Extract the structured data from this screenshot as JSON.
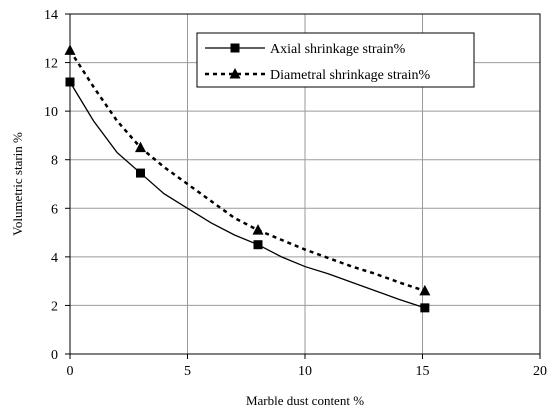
{
  "chart_data": {
    "type": "line",
    "title": "",
    "xlabel": "Marble dust content %",
    "ylabel": "Volumetric starin %",
    "xlim": [
      0,
      20
    ],
    "ylim": [
      0,
      14
    ],
    "xticks": [
      0,
      5,
      10,
      15,
      20
    ],
    "yticks": [
      0,
      2,
      4,
      6,
      8,
      10,
      12,
      14
    ],
    "grid": true,
    "legend_position": "top-right",
    "series": [
      {
        "name": "Axial shrinkage strain%",
        "marker": "square",
        "line_style": "solid",
        "color": "#000000",
        "points": [
          {
            "x": 0,
            "y": 11.2
          },
          {
            "x": 3,
            "y": 7.45
          },
          {
            "x": 8,
            "y": 4.5
          },
          {
            "x": 15.1,
            "y": 1.9
          }
        ],
        "curve": [
          {
            "x": 0,
            "y": 11.2
          },
          {
            "x": 1,
            "y": 9.6
          },
          {
            "x": 2,
            "y": 8.3
          },
          {
            "x": 3,
            "y": 7.45
          },
          {
            "x": 4,
            "y": 6.6
          },
          {
            "x": 5,
            "y": 6.0
          },
          {
            "x": 6,
            "y": 5.4
          },
          {
            "x": 7,
            "y": 4.9
          },
          {
            "x": 8,
            "y": 4.5
          },
          {
            "x": 9,
            "y": 4.0
          },
          {
            "x": 10,
            "y": 3.6
          },
          {
            "x": 11,
            "y": 3.3
          },
          {
            "x": 12,
            "y": 2.95
          },
          {
            "x": 13,
            "y": 2.6
          },
          {
            "x": 14,
            "y": 2.25
          },
          {
            "x": 15.1,
            "y": 1.9
          }
        ]
      },
      {
        "name": "Diametral shrinkage strain%",
        "marker": "triangle",
        "line_style": "dashed",
        "color": "#000000",
        "points": [
          {
            "x": 0,
            "y": 12.5
          },
          {
            "x": 3,
            "y": 8.5
          },
          {
            "x": 8,
            "y": 5.1
          },
          {
            "x": 15.1,
            "y": 2.6
          }
        ],
        "curve": [
          {
            "x": 0,
            "y": 12.5
          },
          {
            "x": 1,
            "y": 11.0
          },
          {
            "x": 2,
            "y": 9.6
          },
          {
            "x": 3,
            "y": 8.5
          },
          {
            "x": 4,
            "y": 7.7
          },
          {
            "x": 5,
            "y": 7.0
          },
          {
            "x": 6,
            "y": 6.3
          },
          {
            "x": 7,
            "y": 5.6
          },
          {
            "x": 8,
            "y": 5.1
          },
          {
            "x": 9,
            "y": 4.7
          },
          {
            "x": 10,
            "y": 4.3
          },
          {
            "x": 11,
            "y": 3.95
          },
          {
            "x": 12,
            "y": 3.6
          },
          {
            "x": 13,
            "y": 3.3
          },
          {
            "x": 14,
            "y": 2.95
          },
          {
            "x": 15.1,
            "y": 2.6
          }
        ]
      }
    ]
  }
}
